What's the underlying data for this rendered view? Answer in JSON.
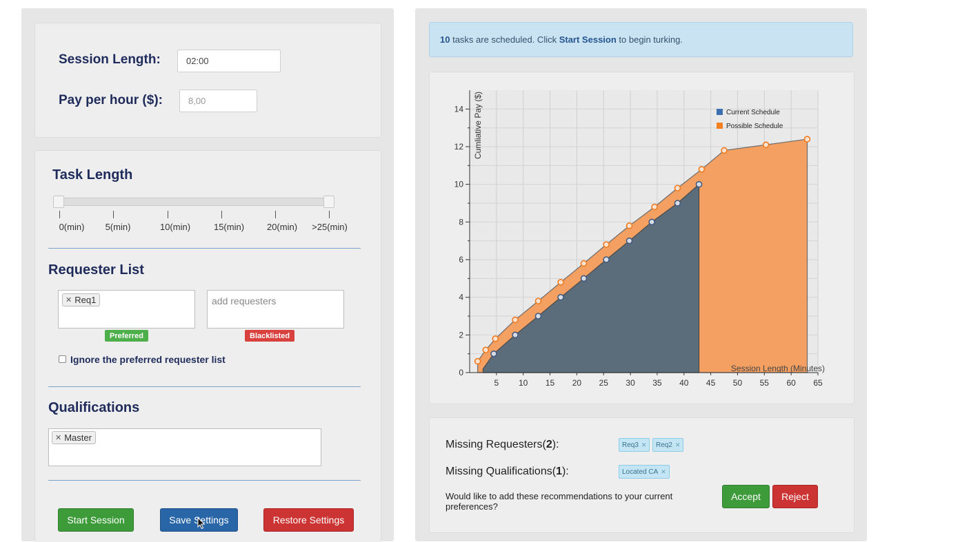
{
  "session": {
    "length_label": "Session Length:",
    "length_value": "02:00",
    "pay_label": "Pay per hour ($):",
    "pay_placeholder": "8,00"
  },
  "task_length": {
    "title": "Task Length",
    "ticks": [
      "0(min)",
      "5(min)",
      "10(min)",
      "15(min)",
      "20(min)",
      ">25(min)"
    ]
  },
  "requester_list": {
    "title": "Requester List",
    "preferred_chips": [
      "Req1"
    ],
    "blacklist_placeholder": "add requesters",
    "preferred_badge": "Preferred",
    "blacklisted_badge": "Blacklisted",
    "ignore_label": "Ignore the preferred requester list"
  },
  "qualifications": {
    "title": "Qualifications",
    "chips": [
      "Master"
    ]
  },
  "buttons": {
    "start": "Start Session",
    "save": "Save Settings",
    "restore": "Restore Settings",
    "accept": "Accept",
    "reject": "Reject"
  },
  "alert": {
    "count": "10",
    "text_before": " tasks are scheduled. Click ",
    "link": "Start Session",
    "text_after": " to begin turking."
  },
  "recommendations": {
    "missing_requesters_prefix": "Missing Requesters(",
    "missing_requesters_count": "2",
    "missing_requesters_suffix": "):",
    "requester_chips": [
      "Req3",
      "Req2"
    ],
    "missing_quals_prefix": "Missing Qualifications(",
    "missing_quals_count": "1",
    "missing_quals_suffix": "):",
    "qual_chips": [
      "Located CA"
    ],
    "question": "Would like to add these recommendations to your current preferences?"
  },
  "colors": {
    "current": "#5b6c7a",
    "possible": "#f4a062",
    "current_legend": "#3b6fb0",
    "possible_legend": "#f27f22"
  },
  "chart_data": {
    "type": "area",
    "xlabel": "Session Length (Minutes)",
    "ylabel": "Cumliative Pay ($)",
    "xlim": [
      0,
      65
    ],
    "ylim": [
      0,
      15
    ],
    "xticks": [
      5,
      10,
      15,
      20,
      25,
      30,
      35,
      40,
      45,
      50,
      55,
      60,
      65
    ],
    "yticks": [
      0,
      2,
      4,
      6,
      8,
      10,
      12,
      14
    ],
    "legend_position": "top-right",
    "grid": true,
    "series": [
      {
        "name": "Current Schedule",
        "x": [
          2.5,
          4.5,
          8.5,
          12.8,
          17.0,
          21.3,
          25.5,
          29.8,
          34.0,
          38.8,
          42.8
        ],
        "y": [
          0.2,
          1.0,
          2.0,
          3.0,
          4.0,
          5.0,
          6.0,
          7.0,
          8.0,
          9.0,
          10.0
        ]
      },
      {
        "name": "Possible Schedule",
        "x": [
          1.5,
          3.0,
          4.8,
          8.5,
          12.8,
          17.0,
          21.3,
          25.5,
          29.8,
          34.5,
          38.8,
          43.3,
          47.5,
          55.3,
          63.0
        ],
        "y": [
          0.6,
          1.2,
          1.8,
          2.8,
          3.8,
          4.8,
          5.8,
          6.8,
          7.8,
          8.8,
          9.8,
          10.8,
          11.8,
          12.1,
          12.4
        ]
      }
    ]
  }
}
